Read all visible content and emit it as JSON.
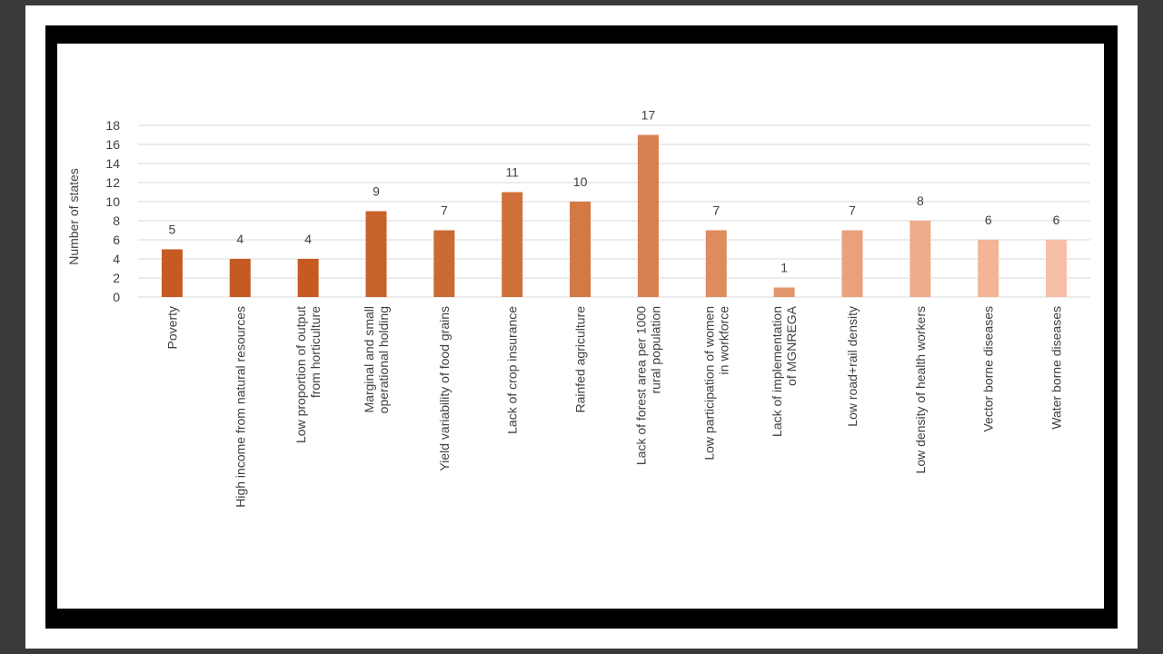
{
  "chart_data": {
    "type": "bar",
    "title": "",
    "xlabel": "",
    "ylabel": "Number of states",
    "ylim": [
      0,
      18
    ],
    "yticks": [
      0,
      2,
      4,
      6,
      8,
      10,
      12,
      14,
      16,
      18
    ],
    "grid": true,
    "legend": "none",
    "categories": [
      [
        "Poverty"
      ],
      [
        "High income from natural resources"
      ],
      [
        "Low proportion of output",
        "from horticulture"
      ],
      [
        "Marginal and small",
        "operational holding"
      ],
      [
        "Yield variability of food grains"
      ],
      [
        "Lack of crop insurance"
      ],
      [
        "Rainfed agriculture"
      ],
      [
        "Lack of forest area per 1000",
        "rural population"
      ],
      [
        "Low participation of women",
        "in workforce"
      ],
      [
        "Lack of implementation",
        "of MGNREGA"
      ],
      [
        "Low road+rail density"
      ],
      [
        "Low density of health workers"
      ],
      [
        "Vector borne diseases"
      ],
      [
        "Water borne diseases"
      ]
    ],
    "values": [
      5,
      4,
      4,
      9,
      7,
      11,
      10,
      17,
      7,
      1,
      7,
      8,
      6,
      6
    ],
    "colors": [
      "#c55a22",
      "#c55a22",
      "#c55a22",
      "#c8622b",
      "#cc6a33",
      "#d0703a",
      "#d47844",
      "#d98050",
      "#de8b5e",
      "#e3966c",
      "#e8a17b",
      "#eeac8a",
      "#f2b598",
      "#f7bea6"
    ]
  }
}
